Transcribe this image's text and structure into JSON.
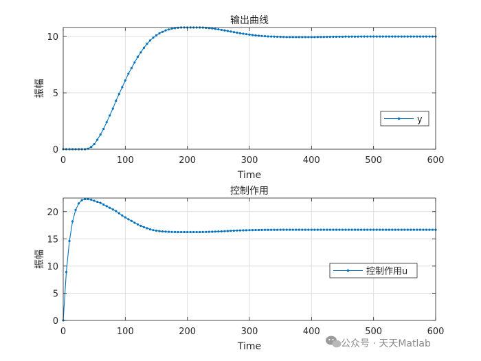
{
  "watermark": {
    "text": "公众号 · 天天Matlab",
    "icon": "wechat-icon"
  },
  "colors": {
    "line": "#0072BD",
    "grid": "#dfdfdf",
    "axes": "#262626"
  },
  "chart_data": [
    {
      "type": "line",
      "title": "输出曲线",
      "xlabel": "Time",
      "ylabel": "振幅",
      "xlim": [
        0,
        600
      ],
      "ylim": [
        0,
        10.8
      ],
      "xticks": [
        0,
        100,
        200,
        300,
        400,
        500,
        600
      ],
      "yticks": [
        0,
        5,
        10
      ],
      "grid": true,
      "legend_position": "right",
      "marker": "dot",
      "series": [
        {
          "name": "y",
          "x": [
            0,
            5,
            10,
            15,
            20,
            25,
            30,
            35,
            40,
            45,
            50,
            55,
            60,
            65,
            70,
            75,
            80,
            85,
            90,
            95,
            100,
            105,
            110,
            115,
            120,
            125,
            130,
            135,
            140,
            145,
            150,
            155,
            160,
            165,
            170,
            175,
            180,
            185,
            190,
            195,
            200,
            205,
            210,
            215,
            220,
            225,
            230,
            235,
            240,
            245,
            250,
            255,
            260,
            265,
            270,
            275,
            280,
            285,
            290,
            295,
            300,
            305,
            310,
            315,
            320,
            325,
            330,
            335,
            340,
            345,
            350,
            355,
            360,
            365,
            370,
            375,
            380,
            385,
            390,
            395,
            400,
            405,
            410,
            415,
            420,
            425,
            430,
            435,
            440,
            445,
            450,
            455,
            460,
            465,
            470,
            475,
            480,
            485,
            490,
            495,
            500,
            505,
            510,
            515,
            520,
            525,
            530,
            535,
            540,
            545,
            550,
            555,
            560,
            565,
            570,
            575,
            580,
            585,
            590,
            595,
            600
          ],
          "y": [
            0,
            0,
            0,
            0,
            0,
            0,
            0,
            0,
            0.05,
            0.2,
            0.45,
            0.85,
            1.3,
            1.8,
            2.4,
            3.0,
            3.6,
            4.3,
            4.9,
            5.5,
            6.1,
            6.7,
            7.2,
            7.7,
            8.2,
            8.6,
            9.0,
            9.35,
            9.65,
            9.9,
            10.1,
            10.28,
            10.42,
            10.54,
            10.63,
            10.7,
            10.75,
            10.78,
            10.8,
            10.8,
            10.8,
            10.8,
            10.8,
            10.8,
            10.8,
            10.79,
            10.77,
            10.75,
            10.72,
            10.68,
            10.64,
            10.59,
            10.54,
            10.49,
            10.44,
            10.39,
            10.34,
            10.29,
            10.25,
            10.21,
            10.17,
            10.13,
            10.1,
            10.07,
            10.05,
            10.03,
            10.01,
            10.0,
            9.99,
            9.98,
            9.97,
            9.96,
            9.95,
            9.95,
            9.95,
            9.95,
            9.95,
            9.95,
            9.95,
            9.95,
            9.95,
            9.95,
            9.96,
            9.96,
            9.96,
            9.97,
            9.97,
            9.98,
            9.98,
            9.98,
            9.98,
            9.99,
            9.99,
            9.99,
            9.99,
            9.99,
            10.0,
            10.0,
            10.0,
            10.0,
            10.0,
            10.0,
            10.0,
            10.0,
            10.0,
            10.0,
            10.0,
            10.0,
            10.0,
            10.0,
            10.0,
            10.0,
            10.0,
            10.0,
            10.0,
            10.0,
            10.0,
            10.0,
            10.0,
            10.0,
            10.0
          ]
        }
      ]
    },
    {
      "type": "line",
      "title": "控制作用",
      "xlabel": "Time",
      "ylabel": "振幅",
      "xlim": [
        0,
        600
      ],
      "ylim": [
        0,
        22.5
      ],
      "xticks": [
        0,
        100,
        200,
        300,
        400,
        500,
        600
      ],
      "yticks": [
        0,
        5,
        10,
        15,
        20
      ],
      "grid": true,
      "legend_position": "right",
      "marker": "dot",
      "series": [
        {
          "name": "控制作用u",
          "x": [
            0,
            5,
            10,
            15,
            20,
            25,
            30,
            35,
            40,
            45,
            50,
            55,
            60,
            65,
            70,
            75,
            80,
            85,
            90,
            95,
            100,
            105,
            110,
            115,
            120,
            125,
            130,
            135,
            140,
            145,
            150,
            155,
            160,
            165,
            170,
            175,
            180,
            185,
            190,
            195,
            200,
            205,
            210,
            215,
            220,
            225,
            230,
            235,
            240,
            245,
            250,
            255,
            260,
            265,
            270,
            275,
            280,
            285,
            290,
            295,
            300,
            305,
            310,
            315,
            320,
            325,
            330,
            335,
            340,
            345,
            350,
            355,
            360,
            365,
            370,
            375,
            380,
            385,
            390,
            395,
            400,
            405,
            410,
            415,
            420,
            425,
            430,
            435,
            440,
            445,
            450,
            455,
            460,
            465,
            470,
            475,
            480,
            485,
            490,
            495,
            500,
            505,
            510,
            515,
            520,
            525,
            530,
            535,
            540,
            545,
            550,
            555,
            560,
            565,
            570,
            575,
            580,
            585,
            590,
            595,
            600
          ],
          "y": [
            0,
            8.9,
            14.6,
            18.2,
            20.3,
            21.5,
            22.1,
            22.3,
            22.3,
            22.2,
            22.0,
            21.8,
            21.6,
            21.3,
            21.0,
            20.7,
            20.4,
            20.1,
            19.7,
            19.3,
            18.95,
            18.6,
            18.3,
            17.95,
            17.65,
            17.4,
            17.15,
            16.95,
            16.75,
            16.6,
            16.5,
            16.42,
            16.36,
            16.32,
            16.29,
            16.27,
            16.26,
            16.25,
            16.25,
            16.25,
            16.25,
            16.25,
            16.25,
            16.25,
            16.25,
            16.26,
            16.27,
            16.29,
            16.31,
            16.33,
            16.36,
            16.38,
            16.41,
            16.44,
            16.47,
            16.5,
            16.52,
            16.54,
            16.56,
            16.58,
            16.6,
            16.61,
            16.62,
            16.63,
            16.64,
            16.65,
            16.65,
            16.66,
            16.66,
            16.66,
            16.67,
            16.67,
            16.67,
            16.67,
            16.67,
            16.67,
            16.67,
            16.67,
            16.67,
            16.67,
            16.67,
            16.67,
            16.67,
            16.67,
            16.67,
            16.67,
            16.67,
            16.67,
            16.67,
            16.67,
            16.67,
            16.67,
            16.67,
            16.67,
            16.67,
            16.67,
            16.67,
            16.67,
            16.67,
            16.67,
            16.67,
            16.67,
            16.67,
            16.67,
            16.67,
            16.67,
            16.67,
            16.67,
            16.67,
            16.67,
            16.67,
            16.67,
            16.67,
            16.67,
            16.67,
            16.67,
            16.67,
            16.67,
            16.67,
            16.67,
            16.67
          ]
        }
      ]
    }
  ]
}
